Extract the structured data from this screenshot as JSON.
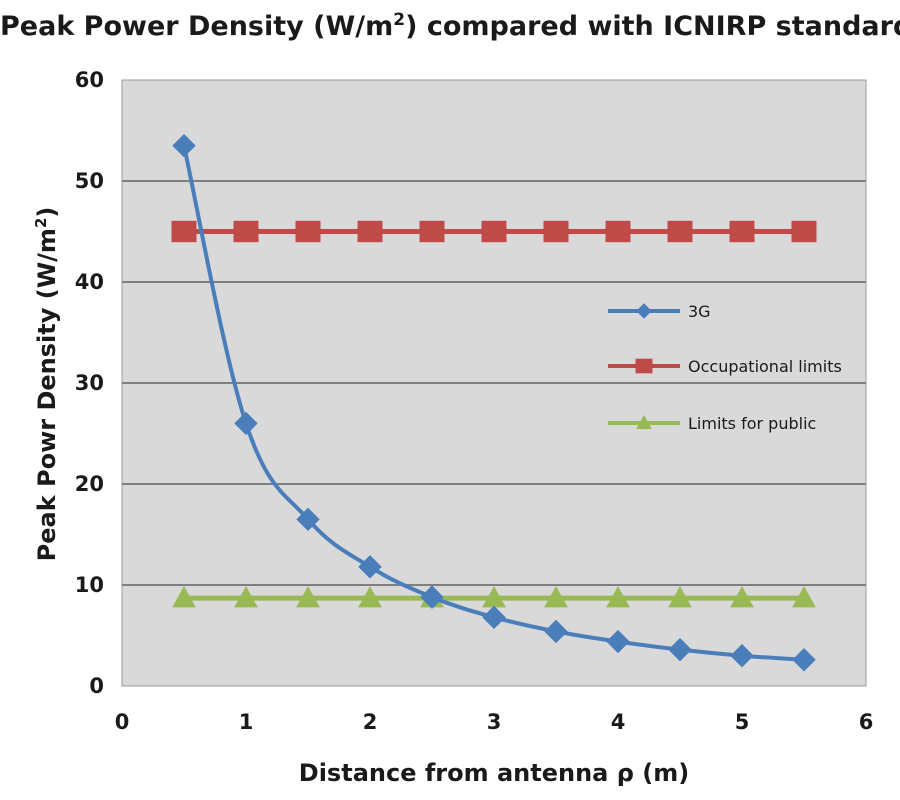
{
  "chart_data": {
    "type": "line",
    "title_main": "Peak Power Density (W/m",
    "title_sup": "2",
    "title_tail": ") compared with ICNIRP standards",
    "xlabel": "Distance from antenna ρ (m)",
    "ylabel_main": "Peak Powr Density (W/m",
    "ylabel_sup": "2",
    "ylabel_tail": ")",
    "xlim": [
      0,
      6
    ],
    "ylim": [
      0,
      60
    ],
    "xticks": [
      0,
      1,
      2,
      3,
      4,
      5,
      6
    ],
    "yticks": [
      0,
      10,
      20,
      30,
      40,
      50,
      60
    ],
    "grid": "horizontal",
    "legend_position": "right",
    "x": [
      0.5,
      1.0,
      1.5,
      2.0,
      2.5,
      3.0,
      3.5,
      4.0,
      4.5,
      5.0,
      5.5
    ],
    "series": [
      {
        "name": "3G",
        "color": "#4a7ebb",
        "marker": "diamond",
        "values": [
          53.5,
          26,
          16.5,
          11.8,
          8.8,
          6.8,
          5.4,
          4.4,
          3.6,
          3.0,
          2.6
        ]
      },
      {
        "name": "Occupational limits",
        "color": "#be4b48",
        "marker": "square",
        "values": [
          45,
          45,
          45,
          45,
          45,
          45,
          45,
          45,
          45,
          45,
          45
        ]
      },
      {
        "name": "Limits for public",
        "color": "#98b954",
        "marker": "triangle",
        "values": [
          8.7,
          8.7,
          8.7,
          8.7,
          8.7,
          8.7,
          8.7,
          8.7,
          8.7,
          8.7,
          8.7
        ]
      }
    ],
    "plot_background": "#d9d9d9",
    "gridline_color": "#7f7f7f"
  }
}
